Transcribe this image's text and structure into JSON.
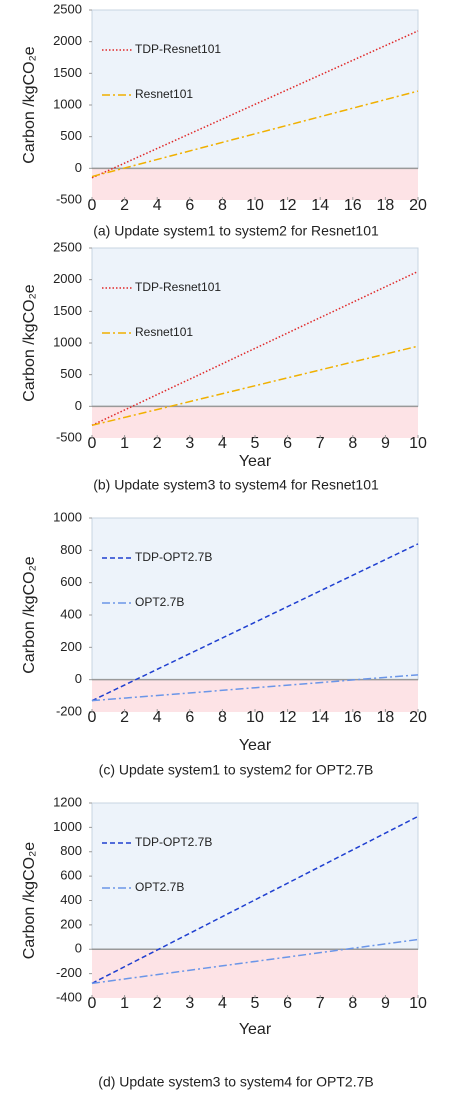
{
  "chart_data": [
    {
      "type": "line",
      "title": "(a) Update system1 to system2 for Resnet101",
      "y_label": "Carbon /kgCO₂e",
      "x": [
        0,
        20
      ],
      "xlim": [
        0,
        20
      ],
      "xticks": [
        0,
        2,
        4,
        6,
        8,
        10,
        12,
        14,
        16,
        18,
        20
      ],
      "ylim": [
        -500,
        2500
      ],
      "yticks": [
        -500,
        0,
        500,
        1000,
        1500,
        2000,
        2500
      ],
      "legend": "upper left",
      "series": [
        {
          "name": "TDP-Resnet101",
          "color": "#e02828",
          "style": "dotted",
          "values": [
            -150,
            2170
          ]
        },
        {
          "name": "Resnet101",
          "color": "#f0b000",
          "style": "dashdot",
          "values": [
            -130,
            1220
          ]
        }
      ]
    },
    {
      "type": "line",
      "title": "(b) Update system3 to system4 for Resnet101",
      "x_label": "Year",
      "y_label": "Carbon /kgCO₂e",
      "x": [
        0,
        10
      ],
      "xlim": [
        0,
        10
      ],
      "xticks": [
        0,
        1,
        2,
        3,
        4,
        5,
        6,
        7,
        8,
        9,
        10
      ],
      "ylim": [
        -500,
        2500
      ],
      "yticks": [
        -500,
        0,
        500,
        1000,
        1500,
        2000,
        2500
      ],
      "legend": "upper left",
      "series": [
        {
          "name": "TDP-Resnet101",
          "color": "#e02828",
          "style": "dotted",
          "values": [
            -300,
            2130
          ]
        },
        {
          "name": "Resnet101",
          "color": "#f0b000",
          "style": "dashdot",
          "values": [
            -300,
            950
          ]
        }
      ]
    },
    {
      "type": "line",
      "title": "(c) Update system1 to system2 for OPT2.7B",
      "x_label": "Year",
      "y_label": "Carbon /kgCO₂e",
      "x": [
        0,
        20
      ],
      "xlim": [
        0,
        20
      ],
      "xticks": [
        0,
        2,
        4,
        6,
        8,
        10,
        12,
        14,
        16,
        18,
        20
      ],
      "ylim": [
        -200,
        1000
      ],
      "yticks": [
        -200,
        0,
        200,
        400,
        600,
        800,
        1000
      ],
      "legend": "upper left",
      "series": [
        {
          "name": "TDP-OPT2.7B",
          "color": "#1f3fd0",
          "style": "dashed",
          "values": [
            -130,
            840
          ]
        },
        {
          "name": "OPT2.7B",
          "color": "#6b96e8",
          "style": "dashdot",
          "values": [
            -130,
            30
          ]
        }
      ]
    },
    {
      "type": "line",
      "title": "(d) Update system3 to system4 for OPT2.7B",
      "x_label": "Year",
      "y_label": "Carbon /kgCO₂e",
      "x": [
        0,
        10
      ],
      "xlim": [
        0,
        10
      ],
      "xticks": [
        0,
        1,
        2,
        3,
        4,
        5,
        6,
        7,
        8,
        9,
        10
      ],
      "ylim": [
        -400,
        1200
      ],
      "yticks": [
        -400,
        -200,
        0,
        200,
        400,
        600,
        800,
        1000,
        1200
      ],
      "legend": "upper left",
      "series": [
        {
          "name": "TDP-OPT2.7B",
          "color": "#1f3fd0",
          "style": "dashed",
          "values": [
            -280,
            1090
          ]
        },
        {
          "name": "OPT2.7B",
          "color": "#6b96e8",
          "style": "dashdot",
          "values": [
            -280,
            80
          ]
        }
      ]
    }
  ]
}
